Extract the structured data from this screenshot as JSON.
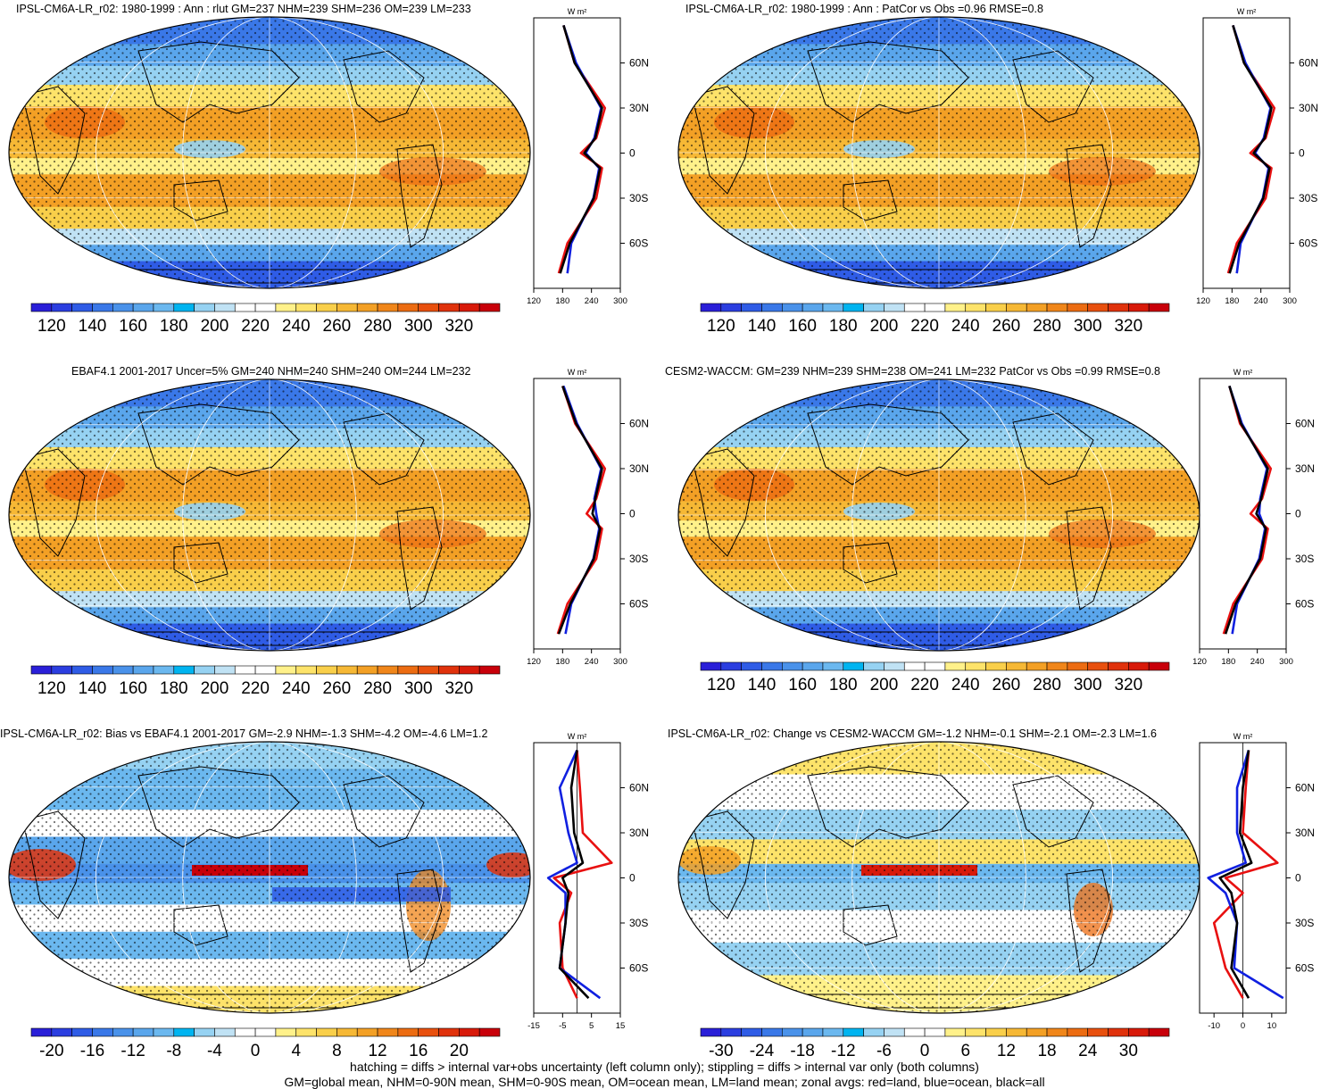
{
  "panels": [
    {
      "title": "IPSL-CM6A-LR_r02: 1980-1999 : Ann : rlut GM=237 NHM=239 SHM=236 OM=239 LM=233"
    },
    {
      "title": "IPSL-CM6A-LR_r02: 1980-1999 : Ann : PatCor vs Obs =0.96 RMSE=0.8"
    },
    {
      "title": "EBAF4.1 2001-2017 Uncer=5% GM=240 NHM=240 SHM=240 OM=244 LM=232"
    },
    {
      "title": "CESM2-WACCM: GM=239 NHM=239 SHM=238 OM=241 LM=232 PatCor vs Obs =0.99 RMSE=0.8"
    },
    {
      "title": "IPSL-CM6A-LR_r02: Bias vs EBAF4.1 2001-2017 GM=-2.9 NHM=-1.3 SHM=-4.2 OM=-4.6 LM=1.2"
    },
    {
      "title": "IPSL-CM6A-LR_r02: Change vs CESM2-WACCM GM=-1.2 NHM=-0.1 SHM=-2.1 OM=-2.3 LM=1.6"
    }
  ],
  "zonal_units": "W m²",
  "lat_ticks": [
    "60N",
    "30N",
    "0",
    "30S",
    "60S"
  ],
  "colorbars": {
    "absolute": {
      "labels": [
        "120",
        "140",
        "160",
        "180",
        "200",
        "220",
        "240",
        "260",
        "280",
        "300",
        "320"
      ],
      "colors": [
        "#2a1fd8",
        "#2b3ee0",
        "#2f5ce6",
        "#3a78e8",
        "#4a92ea",
        "#5aa6ec",
        "#6bb8ef",
        "#00b4f0",
        "#96d2f2",
        "#c0e2f4",
        "#ffffff",
        "#ffffff",
        "#fff18a",
        "#fde36a",
        "#f9cf4a",
        "#f6b835",
        "#f3a025",
        "#f0861a",
        "#ec6c12",
        "#e8500e",
        "#e0320c",
        "#d81a0a",
        "#c8000a"
      ]
    },
    "bias": {
      "labels": [
        "-20",
        "-16",
        "-12",
        "-8",
        "-4",
        "0",
        "4",
        "8",
        "12",
        "16",
        "20"
      ],
      "colors": [
        "#2a1fd8",
        "#2b3ee0",
        "#2f5ce6",
        "#3a78e8",
        "#4a92ea",
        "#5aa6ec",
        "#6bb8ef",
        "#00b4f0",
        "#96d2f2",
        "#c0e2f4",
        "#ffffff",
        "#ffffff",
        "#fff18a",
        "#fde36a",
        "#f9cf4a",
        "#f6b835",
        "#f3a025",
        "#f0861a",
        "#ec6c12",
        "#e8500e",
        "#e0320c",
        "#d81a0a",
        "#c8000a"
      ]
    },
    "change": {
      "labels": [
        "-30",
        "-24",
        "-18",
        "-12",
        "-6",
        "0",
        "6",
        "12",
        "18",
        "24",
        "30"
      ],
      "colors": [
        "#2a1fd8",
        "#2b3ee0",
        "#2f5ce6",
        "#3a78e8",
        "#4a92ea",
        "#5aa6ec",
        "#6bb8ef",
        "#00b4f0",
        "#96d2f2",
        "#c0e2f4",
        "#ffffff",
        "#ffffff",
        "#fff18a",
        "#fde36a",
        "#f9cf4a",
        "#f6b835",
        "#f3a025",
        "#f0861a",
        "#ec6c12",
        "#e8500e",
        "#e0320c",
        "#d81a0a",
        "#c8000a"
      ]
    }
  },
  "zonal_xticks": {
    "absolute": [
      "120",
      "180",
      "240",
      "300"
    ],
    "bias": [
      "-15",
      "-5",
      "5",
      "15"
    ],
    "change": [
      "-10",
      "0",
      "10"
    ]
  },
  "footer": {
    "line1": "hatching = diffs > internal var+obs uncertainty (left column only); stippling = diffs > internal var only (both columns)",
    "line2": "GM=global mean, NHM=0-90N mean, SHM=0-90S mean, OM=ocean mean, LM=land mean; zonal avgs: red=land, blue=ocean, black=all"
  },
  "chart_data": [
    {
      "type": "heatmap",
      "title": "IPSL-CM6A-LR_r02: 1980-1999 : Ann : rlut GM=237 NHM=239 SHM=236 OM=239 LM=233",
      "zonal_profile": {
        "lat": [
          85,
          60,
          30,
          10,
          0,
          -10,
          -30,
          -60,
          -80
        ],
        "all": [
          182,
          205,
          262,
          248,
          225,
          258,
          245,
          195,
          175
        ],
        "land": [
          182,
          205,
          268,
          250,
          218,
          262,
          250,
          190,
          172
        ],
        "ocean": [
          182,
          208,
          260,
          246,
          228,
          256,
          244,
          198,
          190
        ]
      }
    },
    {
      "type": "heatmap",
      "title": "IPSL-CM6A-LR_r02: 1980-1999 : Ann : PatCor vs Obs =0.96 RMSE=0.8",
      "zonal_profile": {
        "lat": [
          85,
          60,
          30,
          10,
          0,
          -10,
          -30,
          -60,
          -80
        ],
        "all": [
          182,
          205,
          262,
          248,
          225,
          258,
          245,
          195,
          175
        ],
        "land": [
          182,
          205,
          268,
          250,
          218,
          262,
          250,
          190,
          172
        ],
        "ocean": [
          182,
          208,
          260,
          246,
          228,
          256,
          244,
          198,
          190
        ]
      }
    },
    {
      "type": "heatmap",
      "title": "EBAF4.1 2001-2017 Uncer=5% GM=240 NHM=240 SHM=240 OM=244 LM=232",
      "zonal_profile": {
        "lat": [
          85,
          60,
          30,
          10,
          0,
          -10,
          -30,
          -60,
          -80
        ],
        "all": [
          180,
          208,
          262,
          248,
          242,
          258,
          245,
          196,
          172
        ],
        "land": [
          180,
          206,
          268,
          250,
          230,
          262,
          250,
          190,
          170
        ],
        "ocean": [
          182,
          210,
          260,
          246,
          250,
          256,
          244,
          198,
          186
        ]
      }
    },
    {
      "type": "heatmap",
      "title": "CESM2-WACCM: GM=239 NHM=239 SHM=238 OM=241 LM=232 PatCor vs Obs =0.99 RMSE=0.8",
      "zonal_profile": {
        "lat": [
          85,
          60,
          30,
          10,
          0,
          -10,
          -30,
          -60,
          -80
        ],
        "all": [
          182,
          206,
          262,
          248,
          238,
          258,
          246,
          195,
          174
        ],
        "land": [
          182,
          204,
          268,
          250,
          226,
          262,
          250,
          190,
          170
        ],
        "ocean": [
          182,
          208,
          260,
          246,
          244,
          256,
          244,
          198,
          188
        ]
      }
    },
    {
      "type": "heatmap",
      "title": "IPSL-CM6A-LR_r02: Bias vs EBAF4.1 2001-2017 GM=-2.9 NHM=-1.3 SHM=-4.2 OM=-4.6 LM=1.2",
      "zonal_profile": {
        "lat": [
          85,
          60,
          30,
          10,
          0,
          -10,
          -30,
          -60,
          -80
        ],
        "all": [
          0,
          -2,
          -1,
          2,
          -5,
          -3,
          -4,
          -6,
          4
        ],
        "land": [
          0,
          1,
          2,
          12,
          -8,
          -2,
          -6,
          -5,
          0
        ],
        "ocean": [
          0,
          -6,
          -3,
          0,
          -10,
          -4,
          -4,
          -6,
          8
        ]
      }
    },
    {
      "type": "heatmap",
      "title": "IPSL-CM6A-LR_r02: Change vs CESM2-WACCM GM=-1.2 NHM=-0.1 SHM=-2.1 OM=-2.3 LM=1.6",
      "zonal_profile": {
        "lat": [
          85,
          60,
          30,
          10,
          0,
          -10,
          -30,
          -60,
          -80
        ],
        "all": [
          2,
          0,
          -1,
          3,
          -8,
          -4,
          -2,
          -4,
          2
        ],
        "land": [
          2,
          1,
          0,
          12,
          -6,
          0,
          -10,
          -6,
          0
        ],
        "ocean": [
          2,
          -2,
          -2,
          1,
          -12,
          -6,
          -2,
          -3,
          14
        ]
      }
    }
  ]
}
